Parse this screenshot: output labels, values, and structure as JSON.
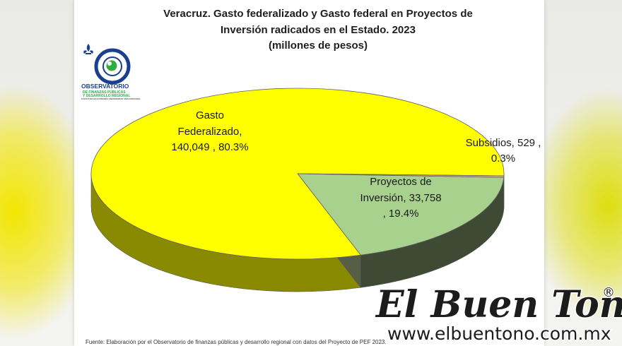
{
  "title_lines": [
    "Veracruz. Gasto federalizado y Gasto federal en Proyectos de",
    "Inversión radicados  en el Estado. 2023",
    "(millones de pesos)"
  ],
  "logo": {
    "name": "OBSERVATORIO",
    "sub1": "DE FINANZAS PÚBLICAS",
    "sub2": "Y DESARROLLO REGIONAL",
    "sub3": "FACULTAD DE ECONOMÍA UNIVERSIDAD VERACRUZANA"
  },
  "chart_data": {
    "type": "pie",
    "style": "3d",
    "title": "Veracruz. Gasto federalizado y Gasto federal en Proyectos de Inversión radicados  en el Estado. 2023 (millones de pesos)",
    "slices": [
      {
        "label": "Gasto Federalizado",
        "value": 140049,
        "percent": 80.3,
        "color": "#ffff00",
        "side_color": "#8a8a00",
        "label_lines": [
          "Gasto",
          "Federalizado,",
          "140,049 , 80.3%"
        ]
      },
      {
        "label": "Subsidios",
        "value": 529,
        "percent": 0.3,
        "color": "#e8a090",
        "side_color": "#b06050",
        "label_lines": [
          "Subsidios,  529 ,",
          "0.3%"
        ]
      },
      {
        "label": "Proyectos de Inversión",
        "value": 33758,
        "percent": 19.4,
        "color": "#a9d18e",
        "side_color": "#3f4a34",
        "label_lines": [
          "Proyectos de",
          "Inversión,  33,758",
          ", 19.4%"
        ]
      }
    ]
  },
  "source_note": "Fuente: Elaboración por el Observatorio de finanzas públicas y desarrollo regional con datos del Proyecto de PEF 2023.",
  "watermark": {
    "title": "El Buen Tono",
    "registered": "®",
    "url": "www.elbuentono.com.mx"
  }
}
